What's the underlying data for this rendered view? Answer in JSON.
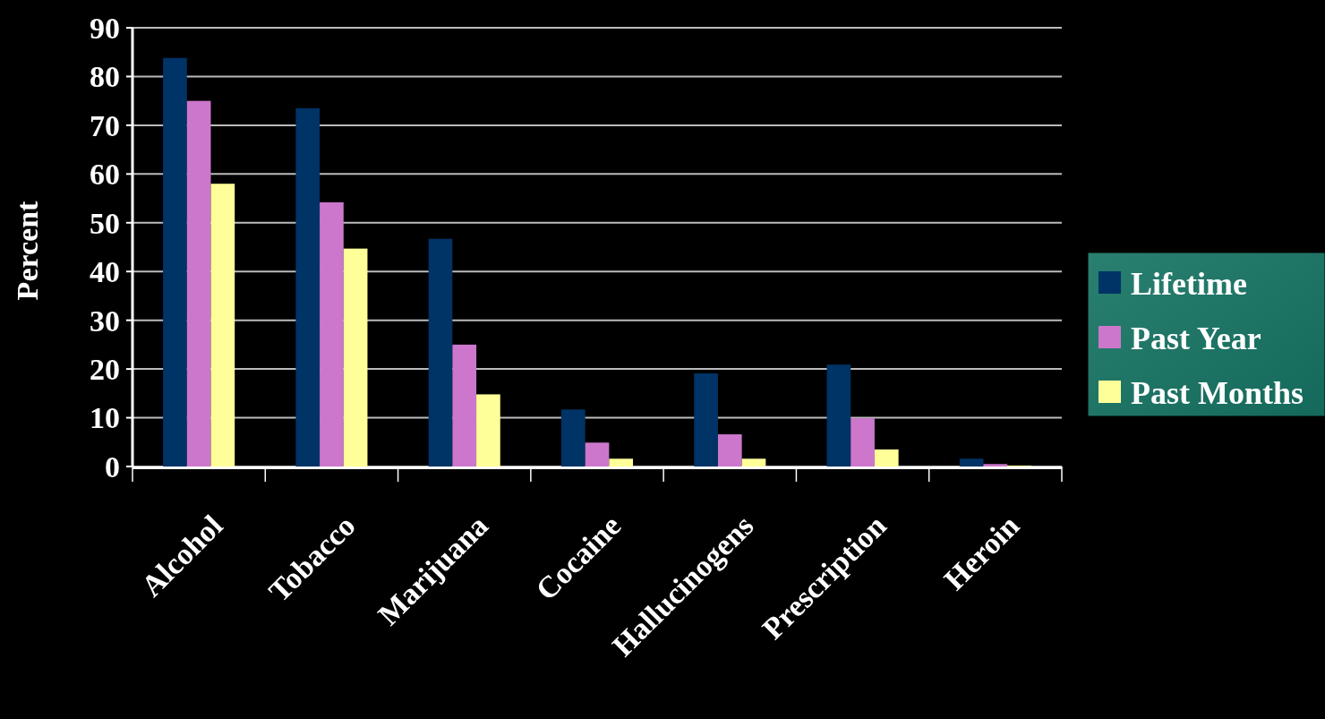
{
  "chart_data": {
    "type": "bar",
    "ylabel": "Percent",
    "categories": [
      "Alcohol",
      "Tobacco",
      "Marijuana",
      "Cocaine",
      "Hallucinogens",
      "Prescription",
      "Heroin"
    ],
    "series": [
      {
        "name": "Lifetime",
        "color": "#003366",
        "values": [
          83.8,
          73.5,
          46.7,
          11.7,
          19.1,
          20.9,
          1.6
        ]
      },
      {
        "name": "Past Year",
        "color": "#cc77cc",
        "values": [
          75,
          54.2,
          25,
          4.9,
          6.6,
          9.9,
          0.5
        ]
      },
      {
        "name": "Past Months",
        "color": "#ffff99",
        "values": [
          58,
          44.7,
          14.8,
          1.6,
          1.6,
          3.5,
          0.2
        ]
      }
    ],
    "ylim": [
      0,
      90
    ],
    "yticks": [
      0,
      10,
      20,
      30,
      40,
      50,
      60,
      70,
      80,
      90
    ],
    "grid": "y",
    "legend": "right"
  }
}
